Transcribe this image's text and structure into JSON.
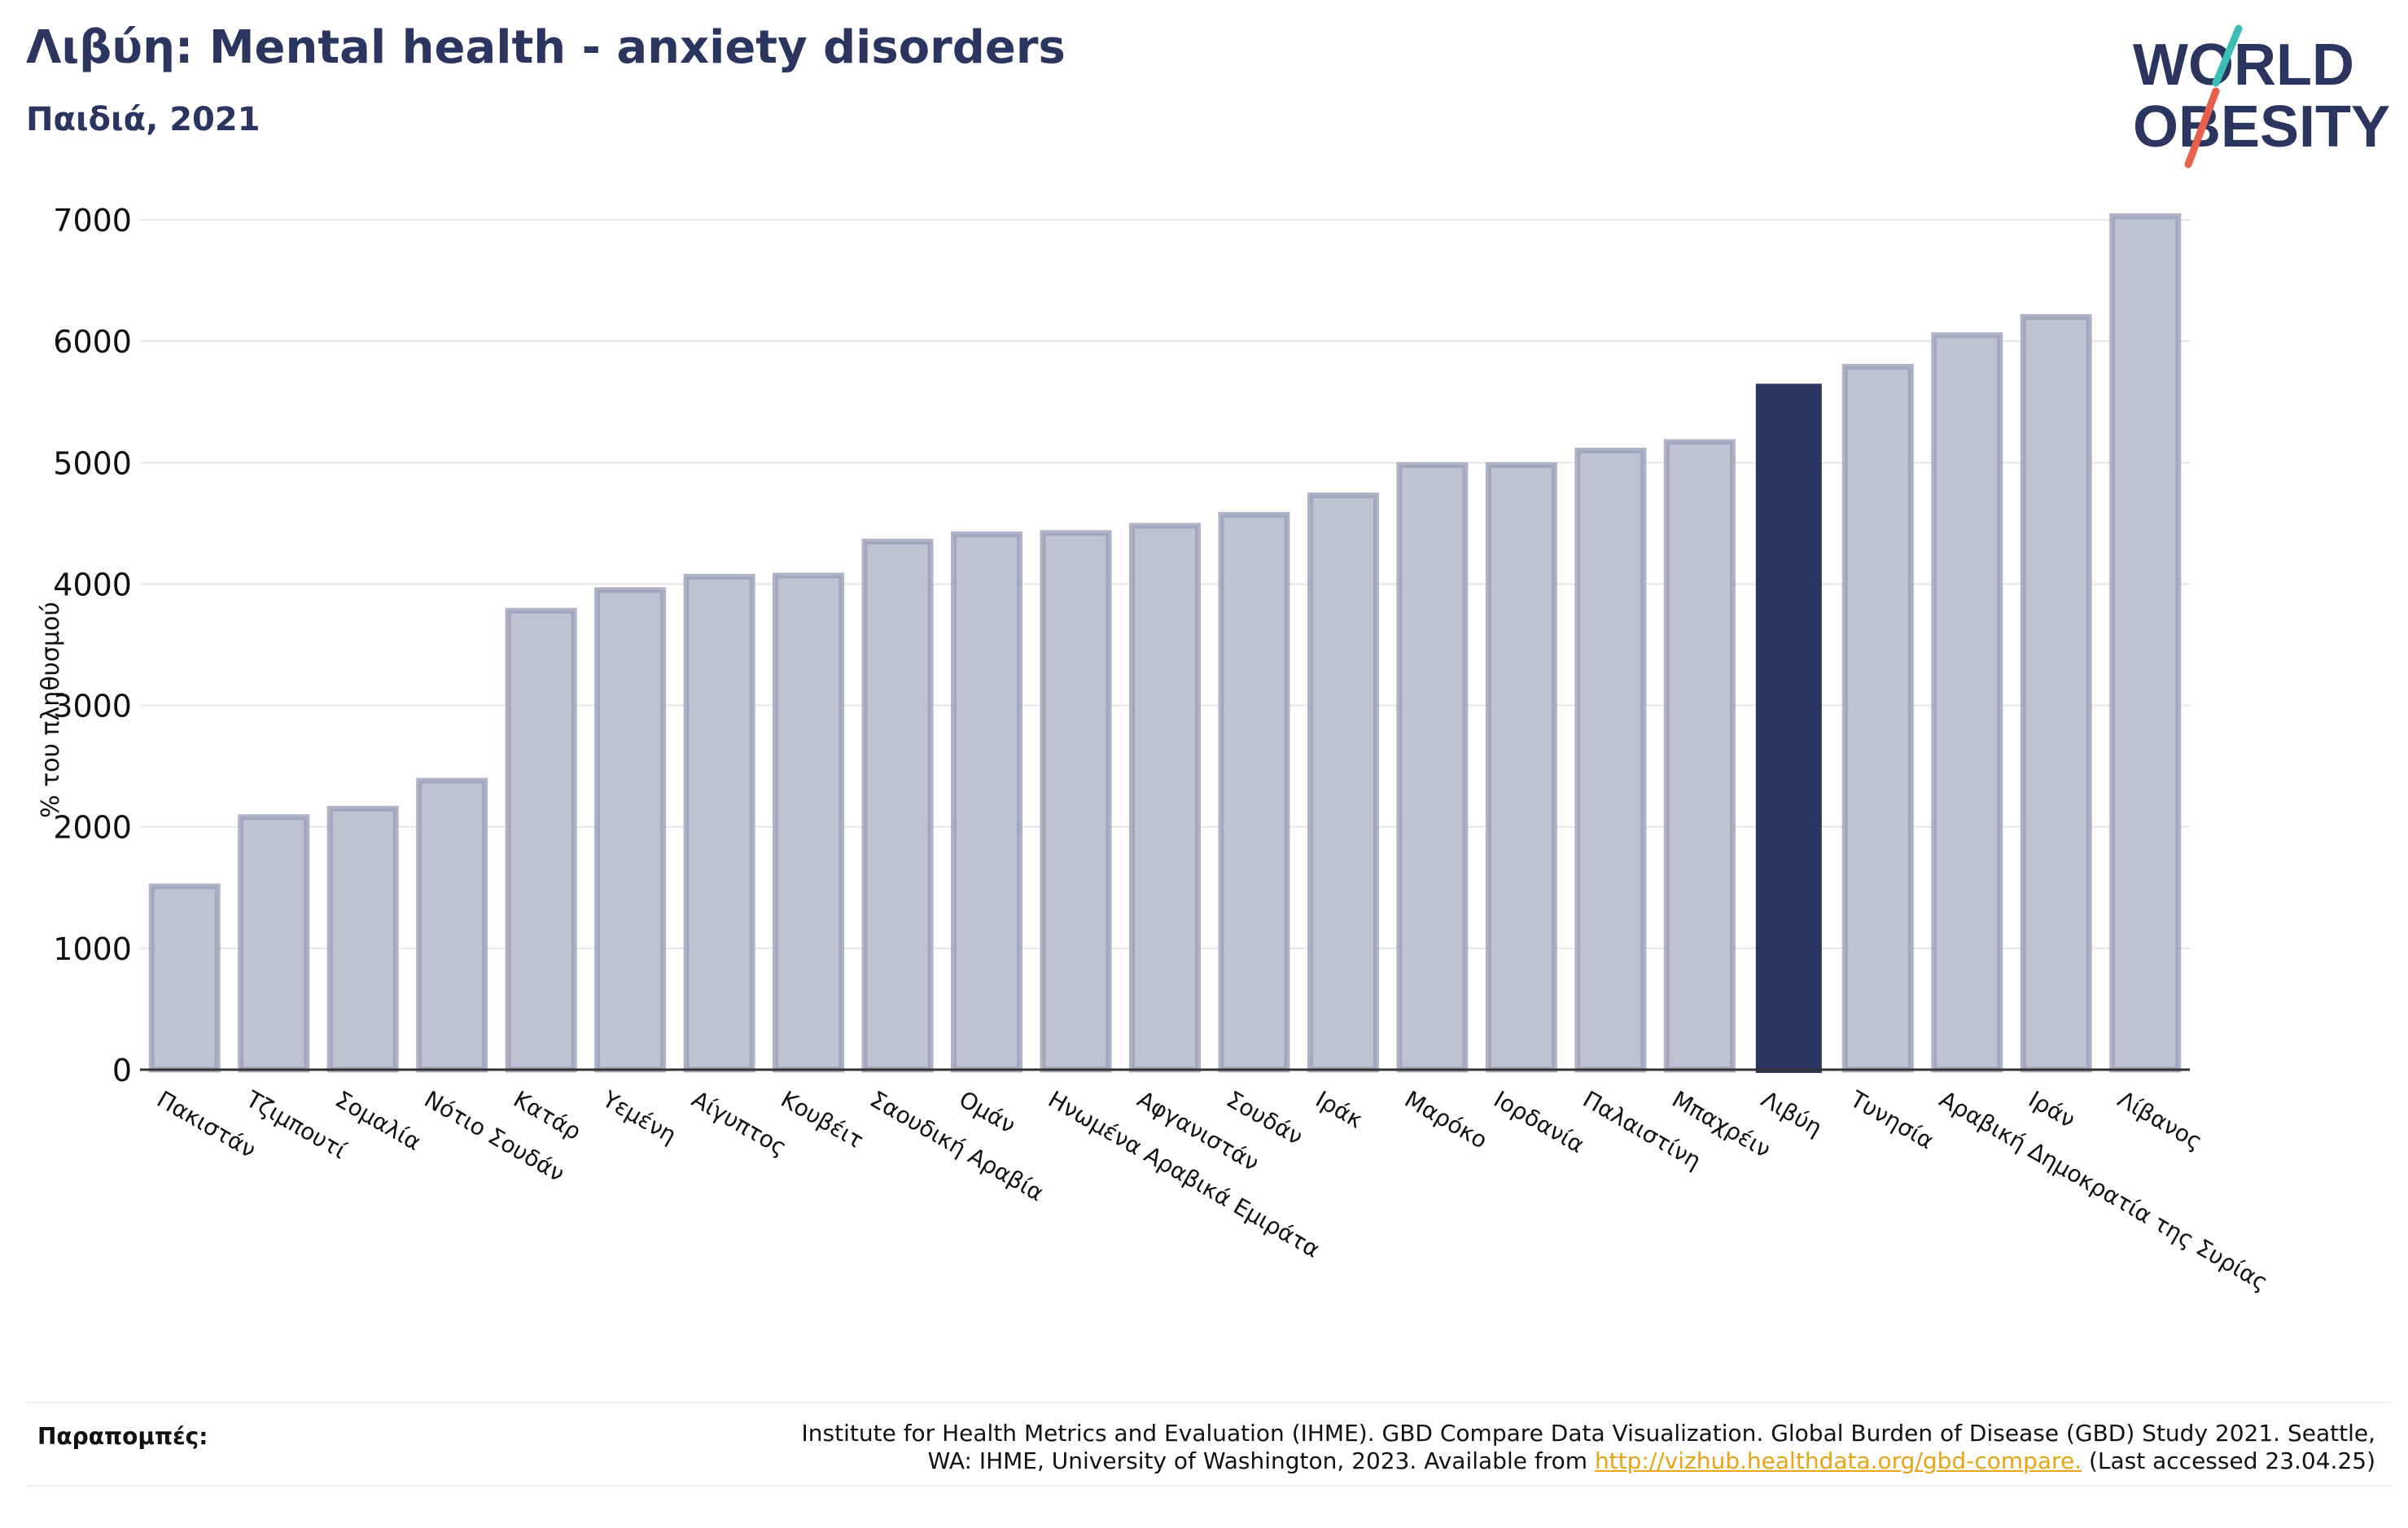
{
  "header": {
    "title": "Λιβύη: Mental health - anxiety disorders",
    "subtitle": "Παιδιά, 2021"
  },
  "logo": {
    "line1": "WORLD",
    "line2": "OBESITY",
    "colors": {
      "text": "#2a3560",
      "slash_teal": "#3bbfb5",
      "slash_red": "#e8604c"
    }
  },
  "colors": {
    "bar_fill": "#bfc2d0",
    "bar_stroke": "#9aa0b8",
    "highlight": "#2a3560",
    "grid": "#e6e6e6",
    "axis": "#333333"
  },
  "chart_data": {
    "type": "bar",
    "ylabel": "% του πληθυσμού",
    "ylim": [
      0,
      7000
    ],
    "yticks": [
      0,
      1000,
      2000,
      3000,
      4000,
      5000,
      6000,
      7000
    ],
    "grid": true,
    "highlight": "Λιβύη",
    "categories": [
      "Πακιστάν",
      "Τζιμπουτί",
      "Σομαλία",
      "Νότιο Σουδάν",
      "Κατάρ",
      "Υεμένη",
      "Αίγυπτος",
      "Κουβέιτ",
      "Σαουδική Αραβία",
      "Ομάν",
      "Ηνωμένα Αραβικά Εμιράτα",
      "Αφγανιστάν",
      "Σουδάν",
      "Ιράκ",
      "Μαρόκο",
      "Ιορδανία",
      "Παλαιστίνη",
      "Μπαχρέιν",
      "Λιβύη",
      "Τυνησία",
      "Αραβική Δημοκρατία της Συρίας",
      "Ιράν",
      "Λίβανος"
    ],
    "values": [
      1510,
      2080,
      2150,
      2380,
      3780,
      3950,
      4060,
      4070,
      4350,
      4410,
      4420,
      4480,
      4570,
      4730,
      4980,
      4980,
      5100,
      5170,
      5650,
      5790,
      6050,
      6200,
      7030
    ]
  },
  "references": {
    "label": "Παραπομπές:",
    "text_line1": "Institute for Health Metrics and Evaluation (IHME). GBD Compare Data Visualization. Global Burden of Disease (GBD) Study 2021. Seattle,",
    "text_line2_before": "WA: IHME, University of Washington, 2023. Available from",
    "link": "http://vizhub.healthdata.org/gbd-compare.",
    "text_after": "(Last accessed 23.04.25)"
  }
}
